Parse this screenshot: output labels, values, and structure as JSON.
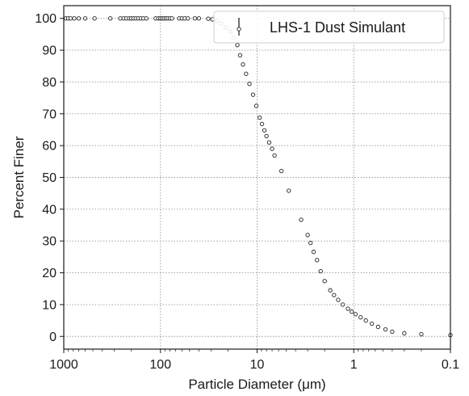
{
  "chart_data": {
    "type": "scatter",
    "xscale": "log",
    "xlim": [
      1000,
      0.1
    ],
    "ylim": [
      -4,
      104
    ],
    "x_ticks": [
      1000,
      100,
      10,
      1,
      0.1
    ],
    "x_tick_labels": [
      "1000",
      "100",
      "10",
      "1",
      "0.1"
    ],
    "y_ticks": [
      0,
      10,
      20,
      30,
      40,
      50,
      60,
      70,
      80,
      90,
      100
    ],
    "y_tick_labels": [
      "0",
      "10",
      "20",
      "30",
      "40",
      "50",
      "60",
      "70",
      "80",
      "90",
      "100"
    ],
    "xlabel": "Particle Diameter (μm)",
    "ylabel": "Percent Finer",
    "grid": true,
    "legend": {
      "placement": "top-right",
      "entries": [
        "LHS-1 Dust Simulant"
      ]
    },
    "colors": {
      "marker_edge": "#222222",
      "marker_fill": "#ffffff",
      "grid": "#9a9a9a",
      "axis": "#1a1a1a"
    },
    "series": [
      {
        "name": "LHS-1 Dust Simulant",
        "points": [
          [
            950,
            100
          ],
          [
            900,
            100
          ],
          [
            850,
            100
          ],
          [
            780,
            100
          ],
          [
            700,
            100
          ],
          [
            600,
            100
          ],
          [
            480,
            100
          ],
          [
            330,
            100
          ],
          [
            260,
            100
          ],
          [
            240,
            100
          ],
          [
            225,
            100
          ],
          [
            210,
            100
          ],
          [
            200,
            100
          ],
          [
            190,
            100
          ],
          [
            180,
            100
          ],
          [
            170,
            100
          ],
          [
            160,
            100
          ],
          [
            150,
            100
          ],
          [
            140,
            100
          ],
          [
            112,
            100
          ],
          [
            105,
            100
          ],
          [
            100,
            100
          ],
          [
            96,
            100
          ],
          [
            92,
            100
          ],
          [
            88,
            100
          ],
          [
            84,
            100
          ],
          [
            80,
            100
          ],
          [
            76,
            100
          ],
          [
            64,
            100
          ],
          [
            60,
            100
          ],
          [
            56,
            100
          ],
          [
            52,
            100
          ],
          [
            44,
            100
          ],
          [
            40,
            100
          ],
          [
            32,
            99.9
          ],
          [
            29,
            99.7
          ],
          [
            26,
            99.2
          ],
          [
            23.5,
            98.4
          ],
          [
            21,
            97.2
          ],
          [
            19,
            95.8
          ],
          [
            17.5,
            94.0
          ],
          [
            16,
            91.6
          ],
          [
            15,
            88.4
          ],
          [
            14,
            85.5
          ],
          [
            13,
            82.6
          ],
          [
            12,
            79.4
          ],
          [
            11,
            76.0
          ],
          [
            10.2,
            72.5
          ],
          [
            9.4,
            68.8
          ],
          [
            8.9,
            66.8
          ],
          [
            8.4,
            64.8
          ],
          [
            8.0,
            63.0
          ],
          [
            7.5,
            61.0
          ],
          [
            7.0,
            59.0
          ],
          [
            6.6,
            56.9
          ],
          [
            5.6,
            52.0
          ],
          [
            4.7,
            45.8
          ],
          [
            3.5,
            36.7
          ],
          [
            3.0,
            31.9
          ],
          [
            2.8,
            29.4
          ],
          [
            2.6,
            26.6
          ],
          [
            2.4,
            24.0
          ],
          [
            2.2,
            20.5
          ],
          [
            2.0,
            17.4
          ],
          [
            1.75,
            14.5
          ],
          [
            1.6,
            13.0
          ],
          [
            1.45,
            11.5
          ],
          [
            1.3,
            10.0
          ],
          [
            1.15,
            8.7
          ],
          [
            1.05,
            7.8
          ],
          [
            0.96,
            7.0
          ],
          [
            0.85,
            6.0
          ],
          [
            0.75,
            5.0
          ],
          [
            0.65,
            4.0
          ],
          [
            0.56,
            3.0
          ],
          [
            0.47,
            2.2
          ],
          [
            0.4,
            1.5
          ],
          [
            0.3,
            1.0
          ],
          [
            0.2,
            0.7
          ],
          [
            0.1,
            0.4
          ]
        ]
      }
    ]
  }
}
